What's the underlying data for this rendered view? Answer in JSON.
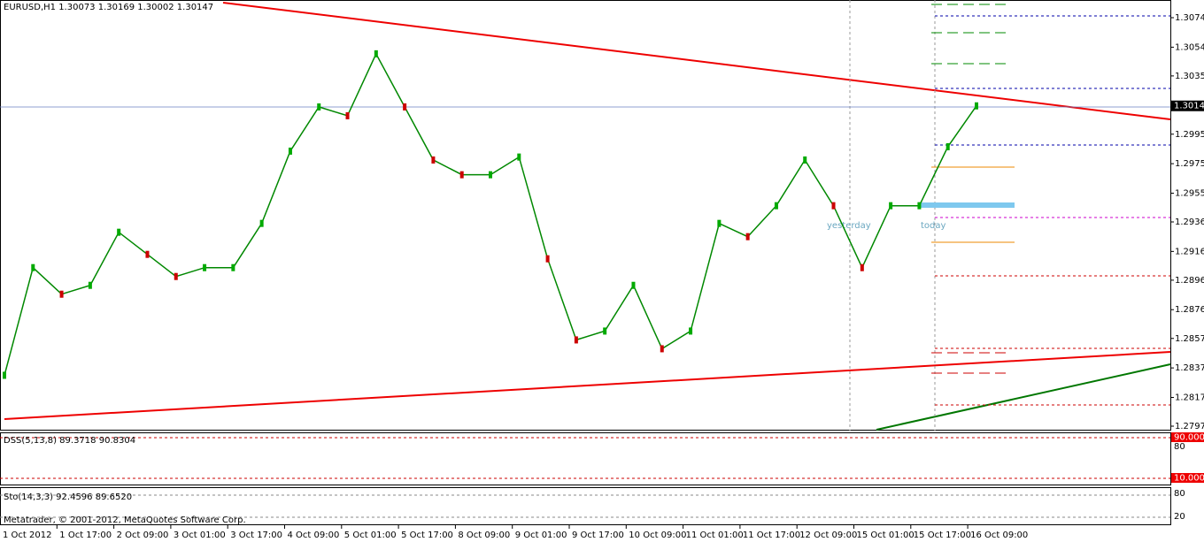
{
  "header": {
    "symbol_line": "EURUSD,H1  1.30073 1.30169 1.30002 1.30147"
  },
  "price_axis": {
    "ticks": [
      "1.30745",
      "1.30545",
      "1.30350",
      "1.30147",
      "1.29955",
      "1.29755",
      "1.29555",
      "1.29360",
      "1.29160",
      "1.28965",
      "1.28765",
      "1.28570",
      "1.28370",
      "1.28170",
      "1.27975"
    ],
    "current": "1.30147"
  },
  "closes": [
    1.2832,
    1.2905,
    1.2887,
    1.2893,
    1.2929,
    1.2914,
    1.2899,
    1.2905,
    1.2905,
    1.2935,
    1.2984,
    1.3014,
    1.3008,
    1.305,
    1.3014,
    1.2978,
    1.2968,
    1.2968,
    1.298,
    1.2911,
    1.2856,
    1.2862,
    1.2893,
    1.285,
    1.2862,
    1.2935,
    1.2926,
    1.2947,
    1.2978,
    1.2947,
    1.2905,
    1.2947,
    1.2947,
    1.2987,
    1.30147
  ],
  "annotations": {
    "yesterday": "yesterday",
    "today": "today"
  },
  "dss": {
    "label": "DSS(5,13,8) 89.3718 90.8304",
    "upper": "90.0000",
    "lower": "10.0000",
    "axis": "80"
  },
  "sto": {
    "label": "Sto(14,3,3) 92.4596 89.6520",
    "axis_high": "80",
    "axis_low": "20"
  },
  "copyright": "Metatrader, © 2001-2012, MetaQuotes Software Corp.",
  "time_axis": [
    "1 Oct 2012",
    "1 Oct 17:00",
    "2 Oct 09:00",
    "3 Oct 01:00",
    "3 Oct 17:00",
    "4 Oct 09:00",
    "5 Oct 01:00",
    "5 Oct 17:00",
    "8 Oct 09:00",
    "9 Oct 01:00",
    "9 Oct 17:00",
    "10 Oct 09:00",
    "11 Oct 01:00",
    "11 Oct 17:00",
    "12 Oct 09:00",
    "15 Oct 01:00",
    "15 Oct 17:00",
    "16 Oct 09:00"
  ]
}
